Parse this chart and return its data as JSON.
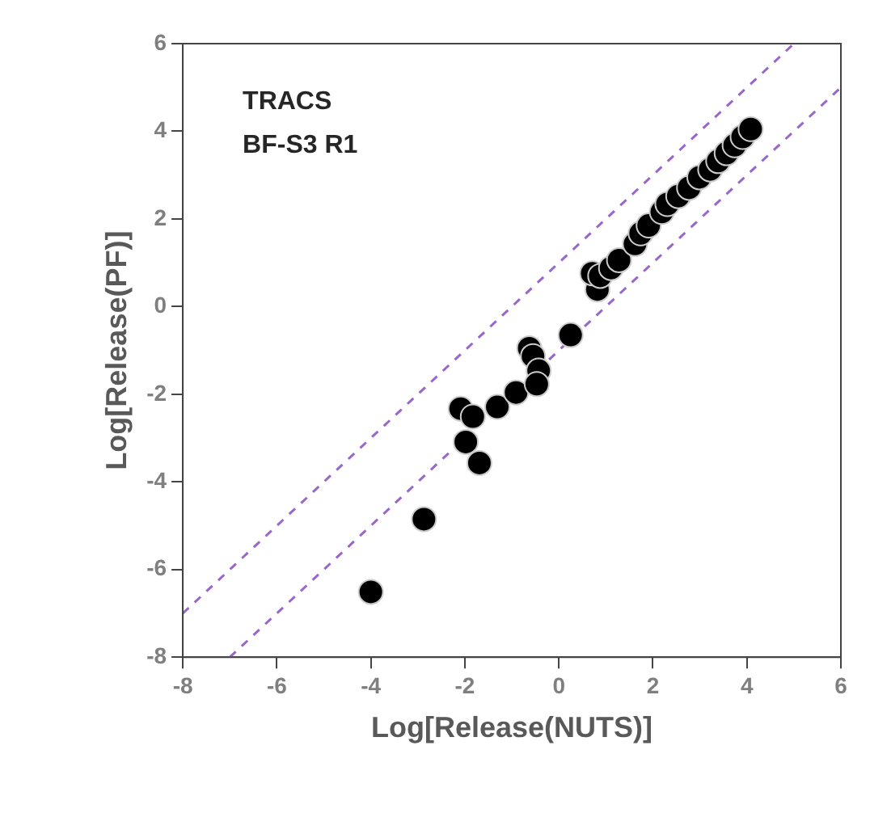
{
  "chart_data": {
    "type": "scatter",
    "xlabel": "Log[Release(NUTS)]",
    "ylabel": "Log[Release(PF)]",
    "annotations": [
      "TRACS",
      "BF-S3 R1"
    ],
    "xlim": [
      -8,
      6
    ],
    "ylim": [
      -8,
      6
    ],
    "xticks": [
      -8,
      -6,
      -4,
      -2,
      0,
      2,
      4,
      6
    ],
    "yticks": [
      -8,
      -6,
      -4,
      -2,
      0,
      2,
      4,
      6
    ],
    "grid": false,
    "legend": false,
    "marker": "circle",
    "series": [
      {
        "type": "scatter",
        "color": "#000000",
        "x": [
          -4.0,
          -2.87,
          -2.09,
          -1.83,
          -1.98,
          -1.69,
          -1.31,
          -0.91,
          -0.63,
          -0.55,
          -0.43,
          -0.47,
          0.25,
          0.82,
          0.71,
          0.88,
          1.11,
          1.28,
          1.62,
          1.74,
          1.91,
          2.19,
          2.31,
          2.54,
          2.77,
          2.99,
          3.22,
          3.39,
          3.57,
          3.74,
          3.91,
          4.08
        ],
        "values": [
          -6.51,
          -4.85,
          -2.33,
          -2.51,
          -3.09,
          -3.57,
          -2.29,
          -1.96,
          -0.95,
          -1.13,
          -1.46,
          -1.77,
          -0.65,
          0.39,
          0.76,
          0.7,
          0.88,
          1.06,
          1.43,
          1.67,
          1.85,
          2.16,
          2.34,
          2.52,
          2.71,
          2.95,
          3.13,
          3.32,
          3.5,
          3.68,
          3.87,
          4.05
        ]
      },
      {
        "type": "line",
        "color": "#9966cc",
        "line_style": "dashed",
        "marker": "none",
        "x": [
          -8,
          5
        ],
        "values": [
          -7,
          6
        ]
      },
      {
        "type": "line",
        "color": "#9966cc",
        "line_style": "dashed",
        "marker": "none",
        "x": [
          -7,
          6
        ],
        "values": [
          -8,
          5
        ]
      }
    ]
  }
}
